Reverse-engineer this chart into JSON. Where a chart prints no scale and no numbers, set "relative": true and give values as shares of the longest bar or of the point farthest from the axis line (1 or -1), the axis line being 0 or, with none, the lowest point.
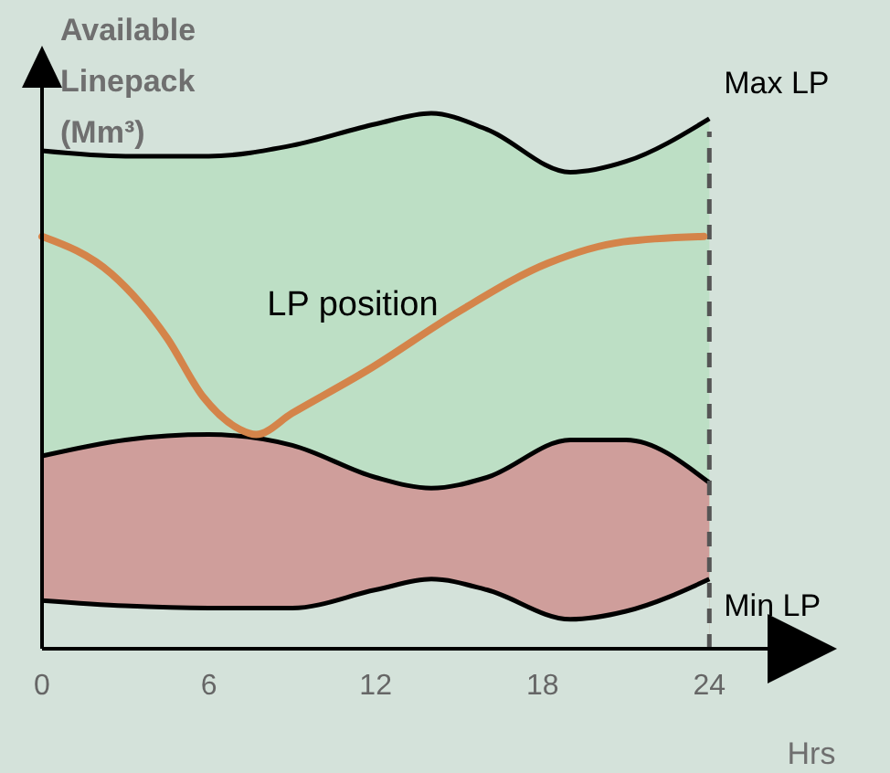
{
  "chart_data": {
    "type": "area",
    "relative": true,
    "ylabel": "Available Linepack (Mm³)",
    "xlabel": "Hrs",
    "x": [
      0,
      3,
      6,
      9,
      12,
      14,
      16,
      19,
      21,
      24
    ],
    "xlim": [
      0,
      28
    ],
    "xticks": [
      0,
      6,
      12,
      18,
      24
    ],
    "tick_labels": "x",
    "series": [
      {
        "name": "Max LP",
        "color": "#bddfc5",
        "values": [
          0.93,
          0.92,
          0.92,
          0.94,
          0.98,
          1.0,
          0.97,
          0.89,
          0.91,
          0.99
        ]
      },
      {
        "color": "#cf9e9b",
        "values": [
          0.36,
          0.39,
          0.4,
          0.38,
          0.32,
          0.3,
          0.32,
          0.39,
          0.39,
          0.31
        ]
      },
      {
        "name": "Min LP",
        "color": "#d4e2da",
        "values": [
          0.09,
          0.08,
          0.076,
          0.076,
          0.11,
          0.13,
          0.11,
          0.055,
          0.07,
          0.13
        ]
      },
      {
        "type": "line",
        "color": "#d4844a",
        "x": [
          0,
          2.5,
          4.5,
          5.8,
          7.1,
          7.7,
          9,
          11.7,
          15,
          18.2,
          20.9,
          23.8
        ],
        "values": [
          0.77,
          0.7,
          0.58,
          0.47,
          0.41,
          0.4,
          0.44,
          0.52,
          0.63,
          0.72,
          0.76,
          0.77
        ]
      }
    ],
    "ref_lines": [
      {
        "axis": "x",
        "value": 24,
        "color": "#555555",
        "line_style": "dashed"
      }
    ],
    "annotations": [
      {
        "text": "LP position",
        "x": 11.7,
        "y": 0.52
      }
    ]
  }
}
